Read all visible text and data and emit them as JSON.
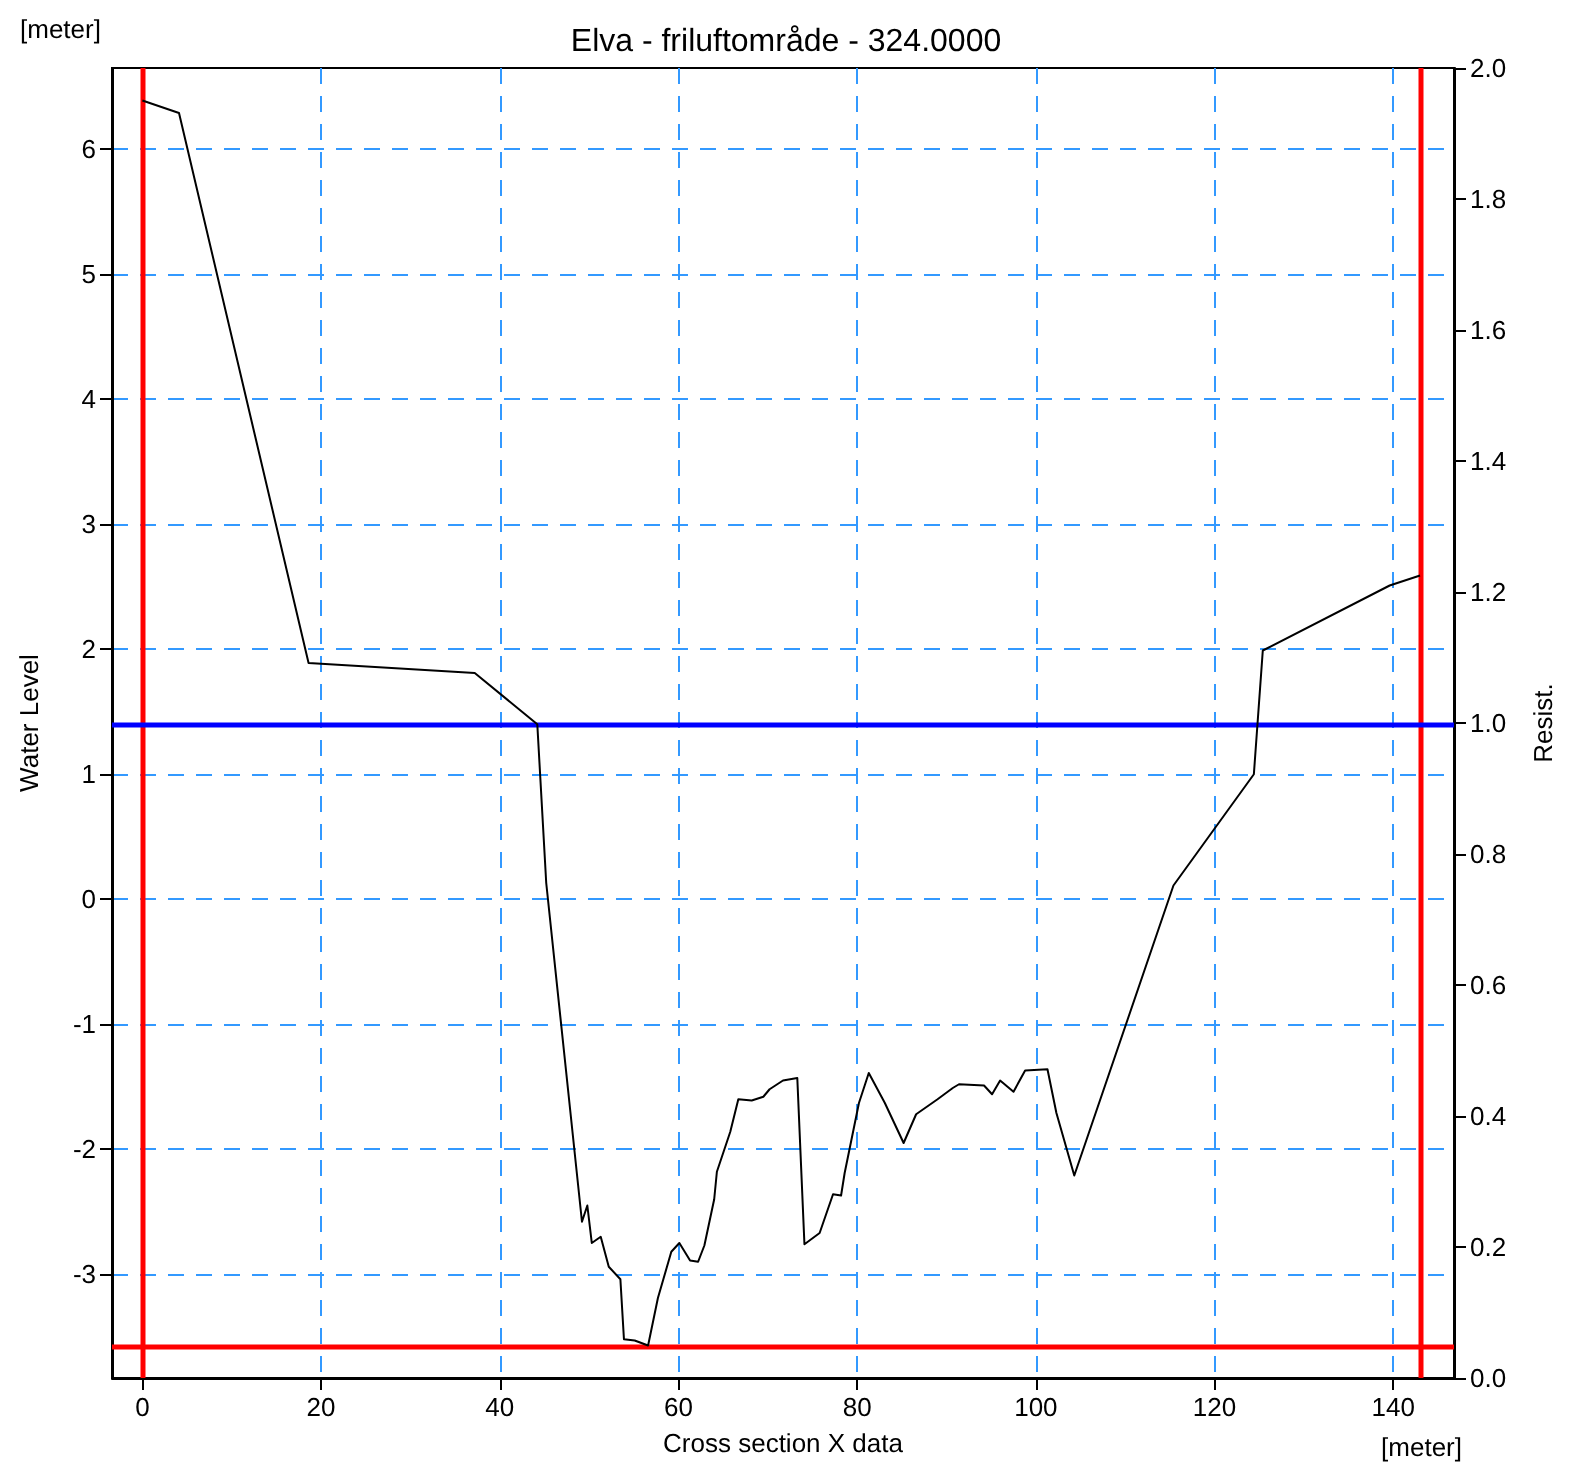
{
  "chart_data": {
    "type": "line",
    "title": "Elva - friluftområde - 324.0000",
    "xlabel": "Cross section X data",
    "ylabel": "Water Level",
    "y2label": "Resist.",
    "annotations": [
      "[meter]",
      "[meter]"
    ],
    "x": [
      0,
      4.1,
      18.6,
      37.2,
      44.2,
      45.2,
      49.2,
      49.8,
      50.3,
      51.3,
      52.2,
      53.5,
      53.9,
      55.1,
      56.6,
      57.7,
      59.2,
      60.1,
      61.3,
      62.2,
      62.9,
      64.0,
      64.3,
      65.8,
      66.7,
      68.2,
      69.5,
      70.2,
      71.7,
      73.3,
      74.1,
      75.8,
      77.3,
      78.2,
      78.6,
      80.2,
      81.3,
      83.1,
      85.2,
      86.6,
      89.0,
      90.7,
      91.4,
      94.2,
      95.1,
      96.0,
      97.5,
      98.8,
      101.3,
      102.3,
      104.3,
      115.4,
      124.4,
      125.4,
      139.6,
      143
    ],
    "series": [
      {
        "color": "#000000",
        "values": [
          6.39,
          6.29,
          1.89,
          1.81,
          1.4,
          0.13,
          -2.58,
          -2.45,
          -2.75,
          -2.7,
          -2.94,
          -3.04,
          -3.52,
          -3.53,
          -3.57,
          -3.19,
          -2.82,
          -2.75,
          -2.89,
          -2.9,
          -2.77,
          -2.4,
          -2.18,
          -1.86,
          -1.6,
          -1.61,
          -1.58,
          -1.52,
          -1.45,
          -1.43,
          -2.76,
          -2.67,
          -2.36,
          -2.37,
          -2.19,
          -1.63,
          -1.39,
          -1.63,
          -1.95,
          -1.72,
          -1.6,
          -1.51,
          -1.48,
          -1.49,
          -1.56,
          -1.45,
          -1.54,
          -1.37,
          -1.36,
          -1.71,
          -2.21,
          0.11,
          1.0,
          1.99,
          2.51,
          2.59
        ]
      }
    ],
    "xlim": [
      -3.4,
      146.8
    ],
    "xticks": [
      0,
      20,
      40,
      60,
      80,
      100,
      120,
      140
    ],
    "ylim": [
      -3.83,
      6.65
    ],
    "yticks": [
      -3,
      -2,
      -1,
      0,
      1,
      2,
      3,
      4,
      5,
      6
    ],
    "y2lim": [
      0,
      2
    ],
    "y2ticks": [
      {
        "value": 0,
        "label": "0.0"
      },
      {
        "value": 0.2,
        "label": "0.2"
      },
      {
        "value": 0.4,
        "label": "0.4"
      },
      {
        "value": 0.6,
        "label": "0.6"
      },
      {
        "value": 0.8,
        "label": "0.8"
      },
      {
        "value": 1,
        "label": "1.0"
      },
      {
        "value": 1.2,
        "label": "1.2"
      },
      {
        "value": 1.4,
        "label": "1.4"
      },
      {
        "value": 1.6,
        "label": "1.6"
      },
      {
        "value": 1.8,
        "label": "1.8"
      },
      {
        "value": 2,
        "label": "2.0"
      }
    ],
    "ref_lines": [
      {
        "axis": "x",
        "value": 0,
        "color": "#ff0000"
      },
      {
        "axis": "x",
        "value": 143,
        "color": "#ff0000"
      },
      {
        "axis": "y",
        "value": -3.57,
        "color": "#ff0000"
      },
      {
        "axis": "y",
        "value": 1.4,
        "color": "#0000ff"
      }
    ],
    "grid": true,
    "marker": "none",
    "line_style": "solid"
  }
}
